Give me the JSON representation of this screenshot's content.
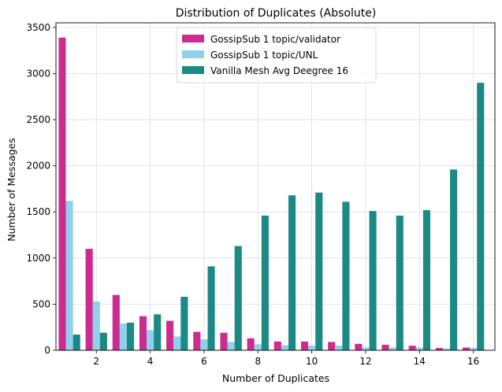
{
  "chart_data": {
    "type": "bar",
    "title": "Distribution of Duplicates (Absolute)",
    "xlabel": "Number of Duplicates",
    "ylabel": "Number of Messages",
    "xlim": [
      0.5,
      16.8
    ],
    "ylim": [
      0,
      3550
    ],
    "xticks": [
      2,
      4,
      6,
      8,
      10,
      12,
      14,
      16
    ],
    "yticks": [
      0,
      500,
      1000,
      1500,
      2000,
      2500,
      3000,
      3500
    ],
    "grid": true,
    "legend_position": "top-center",
    "categories": [
      1,
      2,
      3,
      4,
      5,
      6,
      7,
      8,
      9,
      10,
      11,
      12,
      13,
      14,
      15,
      16
    ],
    "series": [
      {
        "name": "GossipSub 1 topic/validator",
        "color": "#cc2b92",
        "values": [
          3390,
          1100,
          600,
          370,
          320,
          200,
          190,
          130,
          95,
          95,
          90,
          70,
          60,
          50,
          25,
          30
        ]
      },
      {
        "name": "GossipSub 1 topic/UNL",
        "color": "#8fd0ea",
        "values": [
          1620,
          530,
          290,
          220,
          150,
          120,
          90,
          65,
          55,
          50,
          50,
          30,
          30,
          30,
          20,
          25
        ]
      },
      {
        "name": "Vanilla Mesh Avg Deegree 16",
        "color": "#1b8a86",
        "values": [
          170,
          190,
          300,
          390,
          580,
          910,
          1130,
          1460,
          1680,
          1710,
          1610,
          1510,
          1460,
          1520,
          1960,
          2900
        ]
      }
    ]
  }
}
